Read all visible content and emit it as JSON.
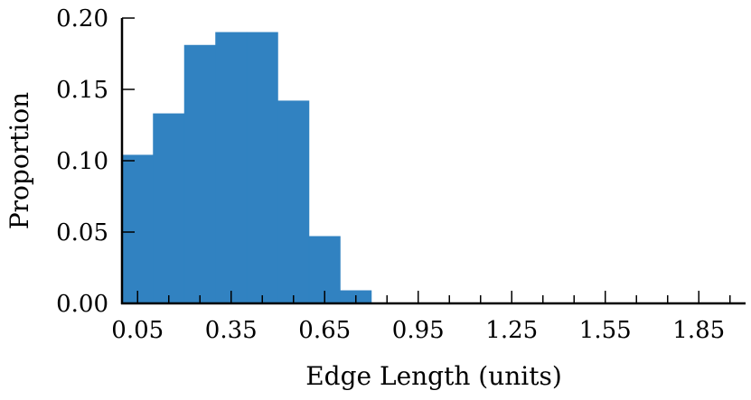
{
  "chart_data": {
    "type": "bar",
    "subtype": "histogram",
    "bin_width": 0.1,
    "bin_edges": [
      0.0,
      0.1,
      0.2,
      0.3,
      0.4,
      0.5,
      0.6,
      0.7,
      0.8
    ],
    "values": [
      0.104,
      0.133,
      0.181,
      0.19,
      0.19,
      0.142,
      0.047,
      0.009
    ],
    "xlabel": "Edge Length (units)",
    "ylabel": "Proportion",
    "xlim": [
      0.0,
      2.0
    ],
    "ylim": [
      0.0,
      0.2
    ],
    "x_ticks": [
      "0.05",
      "0.35",
      "0.65",
      "0.95",
      "1.25",
      "1.55",
      "1.85"
    ],
    "y_ticks": [
      "0.00",
      "0.05",
      "0.10",
      "0.15",
      "0.20"
    ],
    "bar_color": "#3182c1",
    "grid": false
  }
}
